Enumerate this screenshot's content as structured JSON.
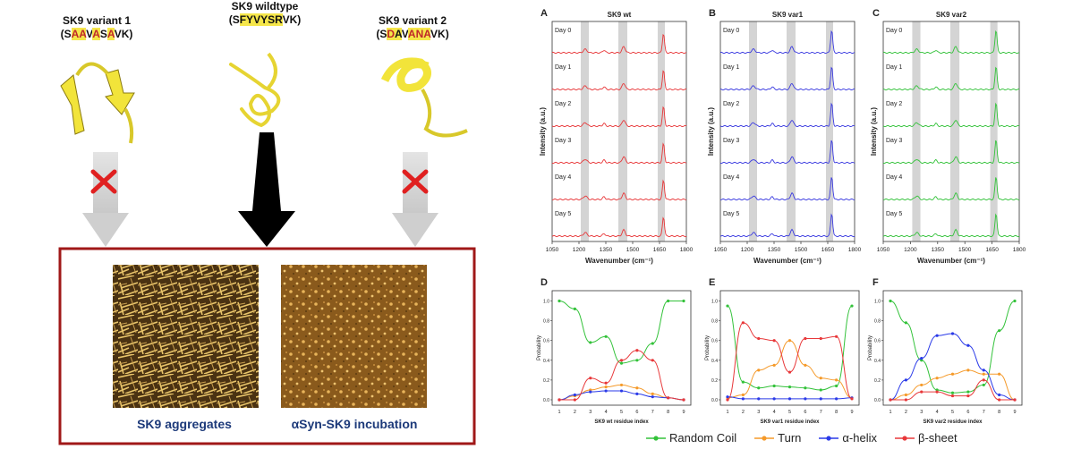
{
  "left_panel": {
    "variant1": {
      "title": "SK9 variant 1",
      "seq": [
        "S",
        "AA",
        "V",
        "A",
        "S",
        "A",
        "VK"
      ]
    },
    "wildtype": {
      "title": "SK9 wildtype",
      "seq": [
        "S",
        "FYVYSR",
        "VK"
      ]
    },
    "variant2": {
      "title": "SK9 variant 2",
      "seq": [
        "S",
        "D",
        "A",
        "V",
        "ANA",
        "VK"
      ]
    },
    "box_labels": {
      "left": "SK9 aggregates",
      "right": "αSyn-SK9 incubation"
    },
    "colors": {
      "ribbon": "#f2e43a",
      "box_border": "#a01818",
      "cross": "#e02020",
      "label": "#1d3a7a"
    }
  },
  "spectra": [
    {
      "panel": "A",
      "title": "SK9 wt",
      "color": "#e8383a",
      "ylabel": "Intensity (a.u.)",
      "xlabel": "Wavenumber (cm⁻¹)",
      "days": [
        "Day 0",
        "Day 1",
        "Day 2",
        "Day 3",
        "Day 4",
        "Day 5"
      ],
      "xticks": [
        "1050",
        "1200",
        "1350",
        "1500",
        "1650",
        "1800"
      ]
    },
    {
      "panel": "B",
      "title": "SK9 var1",
      "color": "#3a3ae0",
      "ylabel": "Intensity (a.u.)",
      "xlabel": "Wavenumber (cm⁻¹)",
      "days": [
        "Day 0",
        "Day 1",
        "Day 2",
        "Day 3",
        "Day 4",
        "Day 5"
      ],
      "xticks": [
        "1050",
        "1200",
        "1350",
        "1500",
        "1650",
        "1800"
      ]
    },
    {
      "panel": "C",
      "title": "SK9 var2",
      "color": "#33c23a",
      "ylabel": "Intensity (a.u.)",
      "xlabel": "Wavenumber (cm⁻¹)",
      "days": [
        "Day 0",
        "Day 1",
        "Day 2",
        "Day 3",
        "Day 4",
        "Day 5"
      ],
      "xticks": [
        "1050",
        "1200",
        "1350",
        "1500",
        "1650",
        "1800"
      ]
    }
  ],
  "chart_data": [
    {
      "panel": "D",
      "type": "line",
      "xlabel": "SK9 wt residue index",
      "ylabel": "Probability",
      "x": [
        1,
        2,
        3,
        4,
        5,
        6,
        7,
        8,
        9
      ],
      "ylim": [
        0,
        1.05
      ],
      "yticks": [
        "0.0",
        "0.2",
        "0.4",
        "0.6",
        "0.8",
        "1.0"
      ],
      "series": [
        {
          "name": "Random Coil",
          "color": "#33c23a",
          "values": [
            1.0,
            0.92,
            0.58,
            0.64,
            0.37,
            0.4,
            0.57,
            1.0,
            1.0
          ]
        },
        {
          "name": "Turn",
          "color": "#f59a2a",
          "values": [
            0.0,
            0.04,
            0.1,
            0.13,
            0.15,
            0.12,
            0.06,
            0.02,
            0.0
          ]
        },
        {
          "name": "α-helix",
          "color": "#2a3ae8",
          "values": [
            0.0,
            0.05,
            0.08,
            0.09,
            0.09,
            0.06,
            0.03,
            0.02,
            0.0
          ]
        },
        {
          "name": "β-sheet",
          "color": "#e8383a",
          "values": [
            0.0,
            0.0,
            0.22,
            0.17,
            0.4,
            0.5,
            0.4,
            0.02,
            0.0
          ]
        }
      ]
    },
    {
      "panel": "E",
      "type": "line",
      "xlabel": "SK9 var1 residue index",
      "ylabel": "Probability",
      "x": [
        1,
        2,
        3,
        4,
        5,
        6,
        7,
        8,
        9
      ],
      "ylim": [
        0,
        1.05
      ],
      "yticks": [
        "0.0",
        "0.2",
        "0.4",
        "0.6",
        "0.8",
        "1.0"
      ],
      "series": [
        {
          "name": "Random Coil",
          "color": "#33c23a",
          "values": [
            0.95,
            0.18,
            0.12,
            0.14,
            0.13,
            0.12,
            0.1,
            0.14,
            0.95
          ]
        },
        {
          "name": "Turn",
          "color": "#f59a2a",
          "values": [
            0.02,
            0.05,
            0.3,
            0.35,
            0.6,
            0.35,
            0.22,
            0.2,
            0.02
          ]
        },
        {
          "name": "α-helix",
          "color": "#2a3ae8",
          "values": [
            0.03,
            0.01,
            0.01,
            0.01,
            0.01,
            0.01,
            0.01,
            0.01,
            0.02
          ]
        },
        {
          "name": "β-sheet",
          "color": "#e8383a",
          "values": [
            0.0,
            0.78,
            0.62,
            0.6,
            0.28,
            0.62,
            0.62,
            0.64,
            0.01
          ]
        }
      ]
    },
    {
      "panel": "F",
      "type": "line",
      "xlabel": "SK9 var2 residue index",
      "ylabel": "Probability",
      "x": [
        1,
        2,
        3,
        4,
        5,
        6,
        7,
        8,
        9
      ],
      "ylim": [
        0,
        1.05
      ],
      "yticks": [
        "0.0",
        "0.2",
        "0.4",
        "0.6",
        "0.8",
        "1.0"
      ],
      "series": [
        {
          "name": "Random Coil",
          "color": "#33c23a",
          "values": [
            1.0,
            0.78,
            0.4,
            0.1,
            0.07,
            0.08,
            0.15,
            0.7,
            1.0
          ]
        },
        {
          "name": "Turn",
          "color": "#f59a2a",
          "values": [
            0.0,
            0.05,
            0.15,
            0.22,
            0.26,
            0.3,
            0.26,
            0.26,
            0.0
          ]
        },
        {
          "name": "α-helix",
          "color": "#2a3ae8",
          "values": [
            0.0,
            0.2,
            0.42,
            0.65,
            0.67,
            0.55,
            0.3,
            0.05,
            0.0
          ]
        },
        {
          "name": "β-sheet",
          "color": "#e8383a",
          "values": [
            0.0,
            0.0,
            0.08,
            0.08,
            0.04,
            0.04,
            0.2,
            0.0,
            0.0
          ]
        }
      ]
    }
  ],
  "legend": [
    "Random Coil",
    "Turn",
    "α-helix",
    "β-sheet"
  ]
}
